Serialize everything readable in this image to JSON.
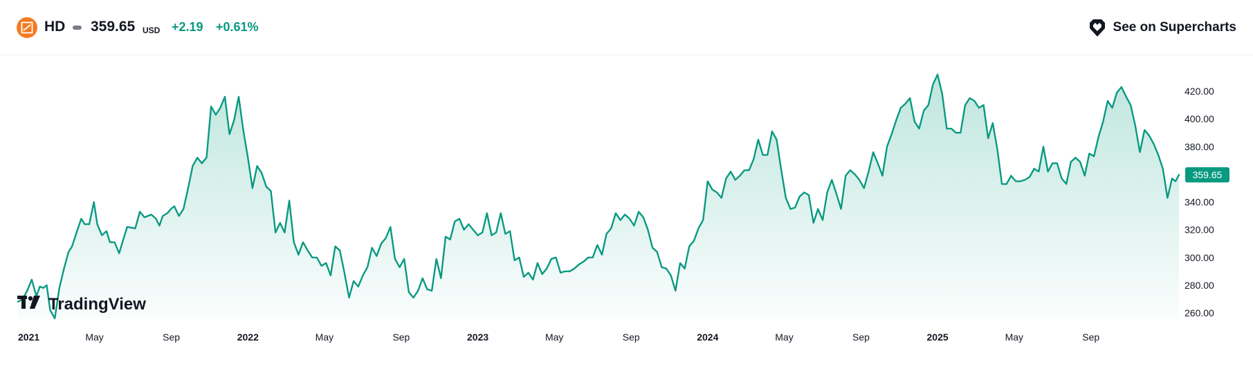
{
  "header": {
    "symbol": "HD",
    "price": "359.65",
    "currency": "USD",
    "change": "+2.19",
    "change_pct": "+0.61%",
    "cta_label": "See on Supercharts",
    "logo_icon": "home-depot-logo-icon",
    "cta_icon": "supercharts-icon"
  },
  "watermark": "TradingView",
  "colors": {
    "line": "#089981",
    "area_top": "#9cd8cc",
    "positive": "#089981",
    "logo": "#f47b20",
    "text": "#131722"
  },
  "chart_data": {
    "type": "area",
    "title": "",
    "xlabel": "",
    "ylabel": "",
    "x_start": "2021-01",
    "x_end": "2025-12",
    "ylim": [
      250,
      432
    ],
    "y_ticks": [
      "420.00",
      "400.00",
      "380.00",
      "360.00",
      "340.00",
      "320.00",
      "300.00",
      "280.00",
      "260.00"
    ],
    "y_tick_values": [
      420,
      400,
      380,
      360,
      340,
      320,
      300,
      280,
      260
    ],
    "x_ticks": [
      {
        "label": "2021",
        "t": 2021.0,
        "major": true
      },
      {
        "label": "May",
        "t": 2021.333,
        "major": false
      },
      {
        "label": "Sep",
        "t": 2021.667,
        "major": false
      },
      {
        "label": "2022",
        "t": 2022.0,
        "major": true
      },
      {
        "label": "May",
        "t": 2022.333,
        "major": false
      },
      {
        "label": "Sep",
        "t": 2022.667,
        "major": false
      },
      {
        "label": "2023",
        "t": 2023.0,
        "major": true
      },
      {
        "label": "May",
        "t": 2023.333,
        "major": false
      },
      {
        "label": "Sep",
        "t": 2023.667,
        "major": false
      },
      {
        "label": "2024",
        "t": 2024.0,
        "major": true
      },
      {
        "label": "May",
        "t": 2024.333,
        "major": false
      },
      {
        "label": "Sep",
        "t": 2024.667,
        "major": false
      },
      {
        "label": "2025",
        "t": 2025.0,
        "major": true
      },
      {
        "label": "May",
        "t": 2025.333,
        "major": false
      },
      {
        "label": "Sep",
        "t": 2025.667,
        "major": false
      }
    ],
    "last_value": 359.65,
    "last_label": "359.65",
    "series": [
      {
        "values": [
          [
            2021.0,
            268
          ],
          [
            2021.02,
            270
          ],
          [
            2021.04,
            276
          ],
          [
            2021.06,
            284
          ],
          [
            2021.08,
            272
          ],
          [
            2021.095,
            279
          ],
          [
            2021.11,
            278
          ],
          [
            2021.125,
            280
          ],
          [
            2021.14,
            262
          ],
          [
            2021.16,
            256
          ],
          [
            2021.18,
            278
          ],
          [
            2021.2,
            292
          ],
          [
            2021.22,
            304
          ],
          [
            2021.235,
            308
          ],
          [
            2021.255,
            318
          ],
          [
            2021.275,
            328
          ],
          [
            2021.29,
            324
          ],
          [
            2021.31,
            324
          ],
          [
            2021.33,
            340
          ],
          [
            2021.345,
            324
          ],
          [
            2021.365,
            316
          ],
          [
            2021.385,
            319
          ],
          [
            2021.4,
            311
          ],
          [
            2021.42,
            311
          ],
          [
            2021.44,
            303
          ],
          [
            2021.46,
            314
          ],
          [
            2021.475,
            322
          ],
          [
            2021.51,
            321
          ],
          [
            2021.53,
            333
          ],
          [
            2021.55,
            329
          ],
          [
            2021.58,
            331
          ],
          [
            2021.6,
            328
          ],
          [
            2021.615,
            323
          ],
          [
            2021.63,
            330
          ],
          [
            2021.65,
            332
          ],
          [
            2021.665,
            335
          ],
          [
            2021.68,
            337
          ],
          [
            2021.7,
            330
          ],
          [
            2021.72,
            335
          ],
          [
            2021.74,
            350
          ],
          [
            2021.76,
            366
          ],
          [
            2021.78,
            372
          ],
          [
            2021.8,
            368
          ],
          [
            2021.82,
            372
          ],
          [
            2021.84,
            409
          ],
          [
            2021.86,
            403
          ],
          [
            2021.88,
            408
          ],
          [
            2021.9,
            416
          ],
          [
            2021.92,
            389
          ],
          [
            2021.94,
            399
          ],
          [
            2021.96,
            416
          ],
          [
            2021.98,
            392
          ],
          [
            2022.0,
            372
          ],
          [
            2022.02,
            350
          ],
          [
            2022.04,
            366
          ],
          [
            2022.06,
            361
          ],
          [
            2022.08,
            351
          ],
          [
            2022.1,
            348
          ],
          [
            2022.12,
            318
          ],
          [
            2022.14,
            325
          ],
          [
            2022.16,
            318
          ],
          [
            2022.18,
            341
          ],
          [
            2022.2,
            311
          ],
          [
            2022.22,
            302
          ],
          [
            2022.24,
            311
          ],
          [
            2022.26,
            305
          ],
          [
            2022.28,
            300
          ],
          [
            2022.3,
            300
          ],
          [
            2022.32,
            294
          ],
          [
            2022.34,
            296
          ],
          [
            2022.36,
            287
          ],
          [
            2022.38,
            308
          ],
          [
            2022.4,
            305
          ],
          [
            2022.42,
            289
          ],
          [
            2022.44,
            271
          ],
          [
            2022.46,
            283
          ],
          [
            2022.48,
            279
          ],
          [
            2022.5,
            287
          ],
          [
            2022.52,
            293
          ],
          [
            2022.54,
            307
          ],
          [
            2022.56,
            301
          ],
          [
            2022.58,
            310
          ],
          [
            2022.6,
            314
          ],
          [
            2022.62,
            322
          ],
          [
            2022.64,
            299
          ],
          [
            2022.66,
            293
          ],
          [
            2022.68,
            299
          ],
          [
            2022.7,
            275
          ],
          [
            2022.72,
            271
          ],
          [
            2022.74,
            276
          ],
          [
            2022.76,
            285
          ],
          [
            2022.78,
            277
          ],
          [
            2022.8,
            276
          ],
          [
            2022.82,
            299
          ],
          [
            2022.84,
            285
          ],
          [
            2022.86,
            315
          ],
          [
            2022.88,
            313
          ],
          [
            2022.9,
            326
          ],
          [
            2022.92,
            328
          ],
          [
            2022.94,
            320
          ],
          [
            2022.96,
            324
          ],
          [
            2022.98,
            320
          ],
          [
            2023.0,
            316
          ],
          [
            2023.02,
            318
          ],
          [
            2023.04,
            332
          ],
          [
            2023.06,
            316
          ],
          [
            2023.08,
            318
          ],
          [
            2023.1,
            332
          ],
          [
            2023.12,
            317
          ],
          [
            2023.14,
            319
          ],
          [
            2023.16,
            298
          ],
          [
            2023.18,
            300
          ],
          [
            2023.2,
            286
          ],
          [
            2023.22,
            289
          ],
          [
            2023.24,
            284
          ],
          [
            2023.26,
            296
          ],
          [
            2023.28,
            288
          ],
          [
            2023.3,
            292
          ],
          [
            2023.32,
            299
          ],
          [
            2023.34,
            300
          ],
          [
            2023.36,
            289
          ],
          [
            2023.38,
            290
          ],
          [
            2023.4,
            290
          ],
          [
            2023.42,
            292
          ],
          [
            2023.44,
            295
          ],
          [
            2023.46,
            297
          ],
          [
            2023.48,
            300
          ],
          [
            2023.5,
            300
          ],
          [
            2023.52,
            309
          ],
          [
            2023.54,
            302
          ],
          [
            2023.56,
            317
          ],
          [
            2023.58,
            321
          ],
          [
            2023.6,
            332
          ],
          [
            2023.62,
            327
          ],
          [
            2023.64,
            331
          ],
          [
            2023.66,
            328
          ],
          [
            2023.68,
            323
          ],
          [
            2023.7,
            333
          ],
          [
            2023.72,
            329
          ],
          [
            2023.74,
            320
          ],
          [
            2023.76,
            307
          ],
          [
            2023.78,
            304
          ],
          [
            2023.8,
            293
          ],
          [
            2023.82,
            292
          ],
          [
            2023.84,
            287
          ],
          [
            2023.86,
            276
          ],
          [
            2023.88,
            296
          ],
          [
            2023.9,
            292
          ],
          [
            2023.92,
            308
          ],
          [
            2023.94,
            312
          ],
          [
            2023.96,
            321
          ],
          [
            2023.98,
            327
          ],
          [
            2024.0,
            355
          ],
          [
            2024.02,
            349
          ],
          [
            2024.04,
            347
          ],
          [
            2024.06,
            343
          ],
          [
            2024.08,
            357
          ],
          [
            2024.1,
            362
          ],
          [
            2024.12,
            356
          ],
          [
            2024.14,
            359
          ],
          [
            2024.16,
            363
          ],
          [
            2024.18,
            363
          ],
          [
            2024.2,
            371
          ],
          [
            2024.22,
            385
          ],
          [
            2024.24,
            374
          ],
          [
            2024.26,
            374
          ],
          [
            2024.28,
            391
          ],
          [
            2024.3,
            385
          ],
          [
            2024.32,
            363
          ],
          [
            2024.34,
            343
          ],
          [
            2024.36,
            335
          ],
          [
            2024.38,
            336
          ],
          [
            2024.4,
            344
          ],
          [
            2024.42,
            347
          ],
          [
            2024.44,
            345
          ],
          [
            2024.46,
            325
          ],
          [
            2024.48,
            335
          ],
          [
            2024.5,
            327
          ],
          [
            2024.52,
            347
          ],
          [
            2024.54,
            356
          ],
          [
            2024.56,
            346
          ],
          [
            2024.58,
            335
          ],
          [
            2024.6,
            359
          ],
          [
            2024.62,
            363
          ],
          [
            2024.64,
            360
          ],
          [
            2024.66,
            356
          ],
          [
            2024.68,
            350
          ],
          [
            2024.7,
            362
          ],
          [
            2024.72,
            376
          ],
          [
            2024.74,
            368
          ],
          [
            2024.76,
            359
          ],
          [
            2024.78,
            380
          ],
          [
            2024.8,
            389
          ],
          [
            2024.82,
            399
          ],
          [
            2024.84,
            408
          ],
          [
            2024.86,
            411
          ],
          [
            2024.88,
            415
          ],
          [
            2024.9,
            398
          ],
          [
            2024.92,
            393
          ],
          [
            2024.94,
            406
          ],
          [
            2024.96,
            410
          ],
          [
            2024.98,
            425
          ],
          [
            2025.0,
            432
          ],
          [
            2025.02,
            418
          ],
          [
            2025.04,
            393
          ],
          [
            2025.06,
            393
          ],
          [
            2025.08,
            390
          ],
          [
            2025.1,
            390
          ],
          [
            2025.12,
            410
          ],
          [
            2025.14,
            415
          ],
          [
            2025.16,
            413
          ],
          [
            2025.18,
            408
          ],
          [
            2025.2,
            410
          ],
          [
            2025.22,
            386
          ],
          [
            2025.24,
            397
          ],
          [
            2025.26,
            378
          ],
          [
            2025.28,
            353
          ],
          [
            2025.3,
            353
          ],
          [
            2025.32,
            359
          ],
          [
            2025.34,
            355
          ],
          [
            2025.36,
            355
          ],
          [
            2025.38,
            356
          ],
          [
            2025.4,
            358
          ],
          [
            2025.42,
            364
          ],
          [
            2025.44,
            362
          ],
          [
            2025.46,
            380
          ],
          [
            2025.48,
            362
          ],
          [
            2025.5,
            368
          ],
          [
            2025.52,
            368
          ],
          [
            2025.54,
            357
          ],
          [
            2025.56,
            353
          ],
          [
            2025.58,
            369
          ],
          [
            2025.6,
            372
          ],
          [
            2025.62,
            369
          ],
          [
            2025.64,
            359
          ],
          [
            2025.66,
            375
          ],
          [
            2025.68,
            373
          ],
          [
            2025.7,
            387
          ],
          [
            2025.72,
            398
          ],
          [
            2025.74,
            413
          ],
          [
            2025.76,
            408
          ],
          [
            2025.78,
            419
          ],
          [
            2025.8,
            423
          ],
          [
            2025.82,
            416
          ],
          [
            2025.84,
            410
          ],
          [
            2025.86,
            395
          ],
          [
            2025.88,
            376
          ],
          [
            2025.9,
            392
          ],
          [
            2025.92,
            388
          ],
          [
            2025.94,
            382
          ],
          [
            2025.96,
            374
          ],
          [
            2025.98,
            364
          ],
          [
            2026.0,
            343
          ],
          [
            2026.02,
            357
          ],
          [
            2026.035,
            355
          ],
          [
            2026.05,
            359.65
          ]
        ]
      }
    ]
  }
}
